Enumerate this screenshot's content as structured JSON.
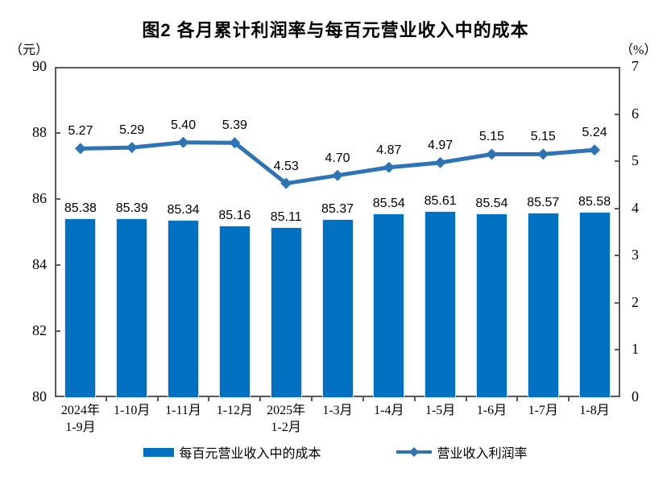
{
  "chart_data": {
    "type": "bar",
    "title": "图2 各月累计利润率与每百元营业收入中的成本",
    "categories": [
      [
        "2024年",
        "1-9月"
      ],
      [
        "1-10月"
      ],
      [
        "1-11月"
      ],
      [
        "1-12月"
      ],
      [
        "2025年",
        "1-2月"
      ],
      [
        "1-3月"
      ],
      [
        "1-4月"
      ],
      [
        "1-5月"
      ],
      [
        "1-6月"
      ],
      [
        "1-7月"
      ],
      [
        "1-8月"
      ]
    ],
    "series": [
      {
        "name": "每百元营业收入中的成本",
        "type": "bar",
        "axis": "left",
        "color": "#0070C0",
        "values": [
          85.38,
          85.39,
          85.34,
          85.16,
          85.11,
          85.37,
          85.54,
          85.61,
          85.54,
          85.57,
          85.58
        ]
      },
      {
        "name": "营业收入利润率",
        "type": "line",
        "axis": "right",
        "color": "#2E74B5",
        "values": [
          5.27,
          5.29,
          5.4,
          5.39,
          4.53,
          4.7,
          4.87,
          4.97,
          5.15,
          5.15,
          5.24
        ]
      }
    ],
    "left_axis": {
      "unit": "（元）",
      "min": 80,
      "max": 90,
      "step": 2,
      "ticks": [
        "90",
        "88",
        "86",
        "84",
        "82",
        "80"
      ]
    },
    "right_axis": {
      "unit": "（%）",
      "min": 0,
      "max": 7,
      "step": 1,
      "ticks": [
        "7",
        "6",
        "5",
        "4",
        "3",
        "2",
        "1",
        "0"
      ]
    },
    "grid": false,
    "legend_position": "bottom",
    "data_label_decimals": 2
  }
}
